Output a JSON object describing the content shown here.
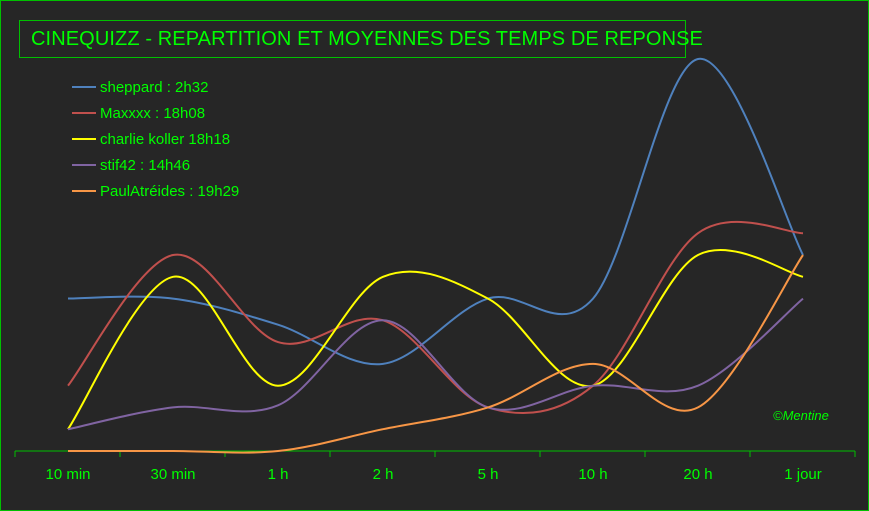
{
  "chart_data": {
    "type": "line",
    "title": "CINEQUIZZ - REPARTITION ET MOYENNES DES TEMPS DE REPONSE",
    "credit": "©Mentine",
    "categories": [
      "10 min",
      "30 min",
      "1 h",
      "2 h",
      "5 h",
      "10 h",
      "20 h",
      "1 jour"
    ],
    "ylim": [
      0,
      18
    ],
    "grid": false,
    "legend_position": "top-left",
    "series": [
      {
        "name": "sheppard : 2h32",
        "color": "#4f81bd",
        "values": [
          7,
          7,
          5.8,
          4,
          7,
          7,
          18,
          9
        ]
      },
      {
        "name": "Maxxxx : 18h08",
        "color": "#c0504d",
        "values": [
          3,
          9,
          5,
          6,
          2,
          3,
          10,
          10
        ]
      },
      {
        "name": "charlie koller 18h18",
        "color": "#ffff00",
        "values": [
          1,
          8,
          3,
          8,
          7,
          3,
          9,
          8
        ]
      },
      {
        "name": "stif42 : 14h46",
        "color": "#8064a2",
        "values": [
          1,
          2,
          2.1,
          6,
          2,
          3,
          3,
          7
        ]
      },
      {
        "name": "PaulAtréides : 19h29",
        "color": "#f79646",
        "values": [
          0,
          0,
          0,
          1,
          2,
          4,
          2,
          9
        ]
      }
    ]
  }
}
